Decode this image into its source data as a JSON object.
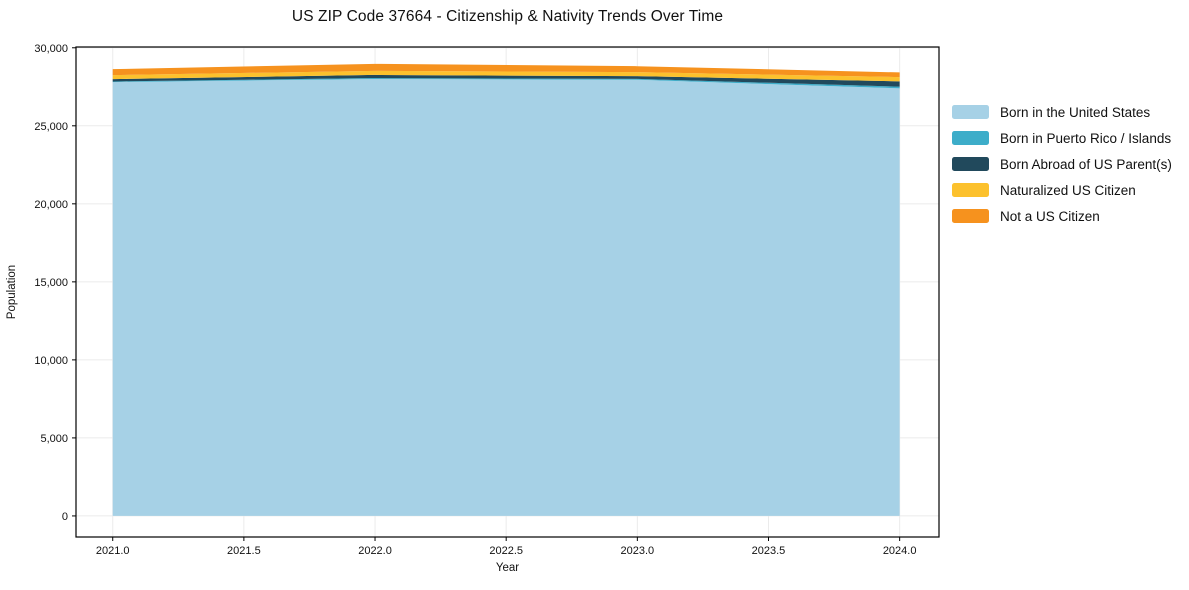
{
  "chart_data": {
    "type": "area",
    "stacked": true,
    "title": "US ZIP Code 37664 - Citizenship & Nativity Trends Over Time",
    "xlabel": "Year",
    "ylabel": "Population",
    "x": [
      2021,
      2022,
      2023,
      2024
    ],
    "series": [
      {
        "name": "Born in the United States",
        "color": "#a6d1e6",
        "values": [
          27800,
          28000,
          27950,
          27400
        ]
      },
      {
        "name": "Born in Puerto Rico / Islands",
        "color": "#3dadc9",
        "values": [
          40,
          60,
          60,
          110
        ]
      },
      {
        "name": "Born Abroad of US Parent(s)",
        "color": "#21495c",
        "values": [
          150,
          200,
          170,
          340
        ]
      },
      {
        "name": "Naturalized US Citizen",
        "color": "#fcc12d",
        "values": [
          260,
          260,
          260,
          270
        ]
      },
      {
        "name": "Not a US Citizen",
        "color": "#f6921e",
        "values": [
          380,
          450,
          380,
          300
        ]
      }
    ],
    "totals": [
      28630,
      28970,
      28820,
      28420
    ],
    "xlim": [
      2020.86,
      2024.15
    ],
    "ylim": [
      -1350,
      30050
    ],
    "xticks": [
      2021.0,
      2021.5,
      2022.0,
      2022.5,
      2023.0,
      2023.5,
      2024.0
    ],
    "xtick_labels": [
      "2021.0",
      "2021.5",
      "2022.0",
      "2022.5",
      "2023.0",
      "2023.5",
      "2024.0"
    ],
    "yticks": [
      0,
      5000,
      10000,
      15000,
      20000,
      25000,
      30000
    ],
    "ytick_labels": [
      "0",
      "5,000",
      "10,000",
      "15,000",
      "20,000",
      "25,000",
      "30,000"
    ],
    "grid": true,
    "grid_color": "#ebebeb",
    "spine_color": "#000000",
    "legend_position": "center right, outside plot"
  }
}
